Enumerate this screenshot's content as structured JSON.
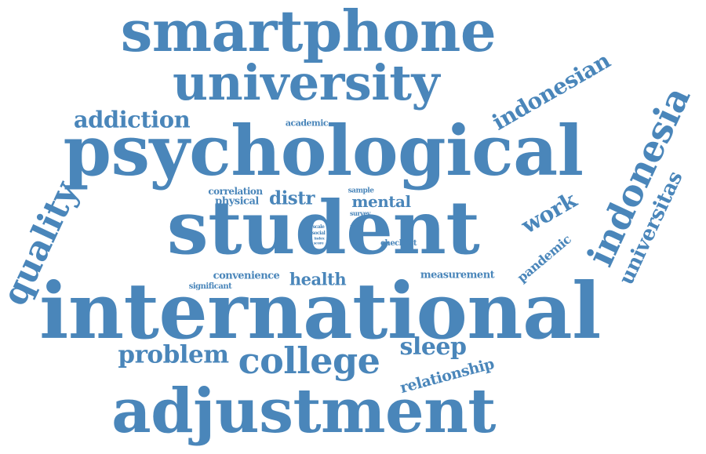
{
  "theme": {
    "word_color": "#4a86ba",
    "background": "#ffffff"
  },
  "words": {
    "smartphone": "smartphone",
    "university": "university",
    "addiction": "addiction",
    "indonesian": "indonesian",
    "indonesia": "indonesia",
    "academic": "academic",
    "psychological": "psychological",
    "quality": "quality",
    "correlation": "correlation",
    "physical": "physical",
    "distr": "distr",
    "sample": "sample",
    "mental": "mental",
    "survey": "survey",
    "work": "work",
    "universitas": "universitas",
    "student": "student",
    "scale": "scale",
    "social": "social",
    "index": "index",
    "score": "score",
    "male": "male",
    "checklist": "checklist",
    "pandemic": "pandemic",
    "convenience": "convenience",
    "significant": "significant",
    "health": "health",
    "measurement": "measurement",
    "international": "international",
    "problem": "problem",
    "college": "college",
    "sleep": "sleep",
    "relationship": "relationship",
    "adjustment": "adjustment"
  }
}
